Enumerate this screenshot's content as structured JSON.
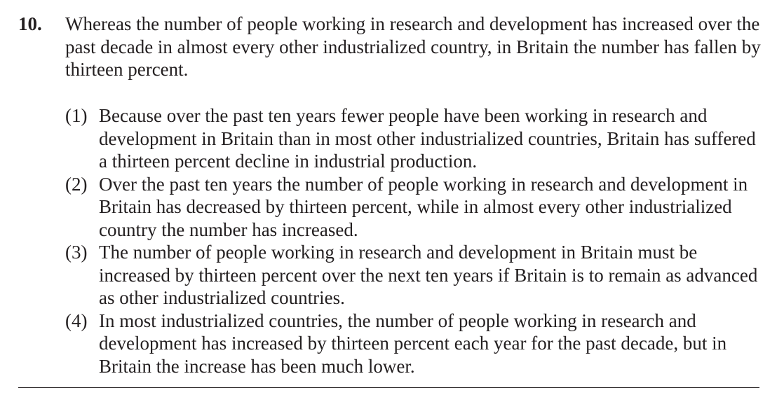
{
  "question": {
    "number": "10.",
    "stem": "Whereas the number of people working in research and development has increased over the past decade in almost every other industrialized country, in Britain the number has fallen by thirteen percent."
  },
  "options": [
    {
      "label": "(1)",
      "text": "Because over the past ten years fewer people have been working in research and development in Britain than in most other industrialized countries, Britain has suffered a thirteen percent decline in industrial production."
    },
    {
      "label": "(2)",
      "text": "Over the past ten years the number of people working in research and development in Britain has decreased by thirteen percent, while in almost every other industrialized country the number has increased."
    },
    {
      "label": "(3)",
      "text": "The number of people working in research and development in Britain must be increased by thirteen percent over the next ten years if Britain is to remain as advanced as other industrialized countries."
    },
    {
      "label": "(4)",
      "text": "In most industrialized countries, the number of people working in research and development has increased by thirteen percent each year for the past decade, but in Britain the increase has been much lower."
    }
  ]
}
